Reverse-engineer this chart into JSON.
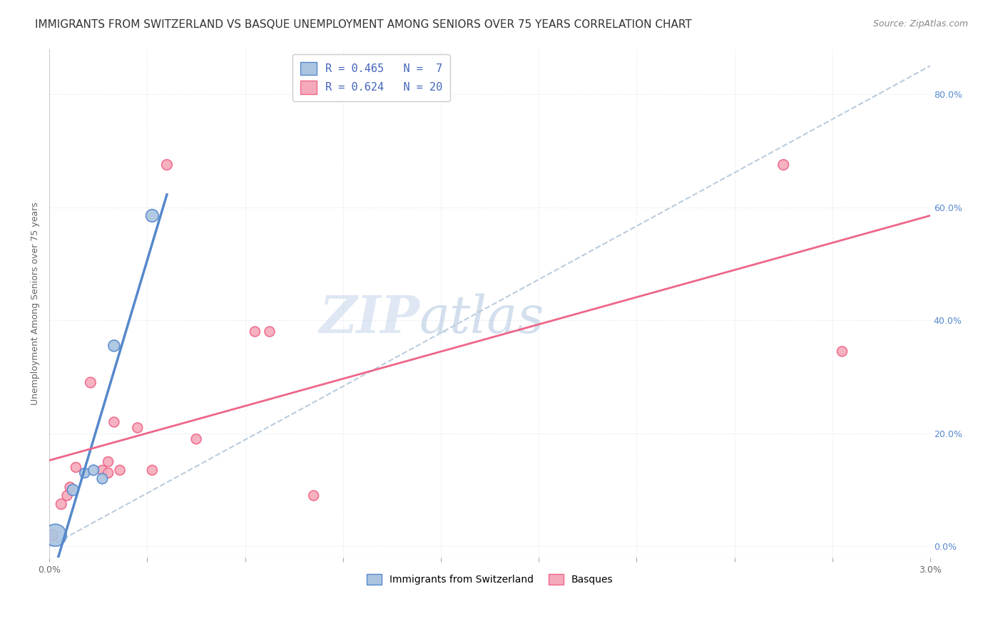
{
  "title": "IMMIGRANTS FROM SWITZERLAND VS BASQUE UNEMPLOYMENT AMONG SENIORS OVER 75 YEARS CORRELATION CHART",
  "source": "Source: ZipAtlas.com",
  "ylabel": "Unemployment Among Seniors over 75 years",
  "right_yticks": [
    "0.0%",
    "20.0%",
    "40.0%",
    "60.0%",
    "80.0%"
  ],
  "right_ytick_vals": [
    0.0,
    0.2,
    0.4,
    0.6,
    0.8
  ],
  "xlim": [
    0.0,
    0.03
  ],
  "ylim": [
    -0.02,
    0.88
  ],
  "plot_ylim": [
    0.0,
    0.85
  ],
  "legend_blue_r": "R = 0.465",
  "legend_blue_n": "N =  7",
  "legend_pink_r": "R = 0.624",
  "legend_pink_n": "N = 20",
  "legend_label_blue": "Immigrants from Switzerland",
  "legend_label_pink": "Basques",
  "blue_scatter": [
    [
      0.0002,
      0.02
    ],
    [
      0.0008,
      0.1
    ],
    [
      0.0012,
      0.13
    ],
    [
      0.0015,
      0.135
    ],
    [
      0.0018,
      0.12
    ],
    [
      0.0022,
      0.355
    ],
    [
      0.0035,
      0.585
    ]
  ],
  "blue_scatter_sizes": [
    500,
    130,
    100,
    110,
    110,
    130,
    160
  ],
  "pink_scatter": [
    [
      0.0001,
      0.02
    ],
    [
      0.0004,
      0.075
    ],
    [
      0.0006,
      0.09
    ],
    [
      0.0007,
      0.105
    ],
    [
      0.0009,
      0.14
    ],
    [
      0.0014,
      0.29
    ],
    [
      0.0018,
      0.135
    ],
    [
      0.002,
      0.13
    ],
    [
      0.002,
      0.15
    ],
    [
      0.0022,
      0.22
    ],
    [
      0.0024,
      0.135
    ],
    [
      0.003,
      0.21
    ],
    [
      0.0035,
      0.135
    ],
    [
      0.004,
      0.675
    ],
    [
      0.005,
      0.19
    ],
    [
      0.007,
      0.38
    ],
    [
      0.0075,
      0.38
    ],
    [
      0.009,
      0.09
    ],
    [
      0.025,
      0.675
    ],
    [
      0.027,
      0.345
    ]
  ],
  "pink_scatter_sizes": [
    130,
    110,
    100,
    100,
    100,
    110,
    100,
    100,
    100,
    100,
    100,
    100,
    100,
    110,
    100,
    100,
    100,
    100,
    110,
    100
  ],
  "blue_line_color": "#5588CC",
  "pink_line_color": "#EE6688",
  "blue_scatter_color": "#AAC4E0",
  "pink_scatter_color": "#F5AABB",
  "dashed_line_color": "#BBCCDD",
  "background_color": "#FFFFFF",
  "watermark_zip": "ZIP",
  "watermark_atlas": "atlas",
  "grid_color": "#E0E4EE",
  "title_fontsize": 11,
  "source_fontsize": 9,
  "axis_label_fontsize": 9,
  "tick_fontsize": 9,
  "legend_fontsize": 11,
  "blue_line_x_start": 0.0,
  "blue_line_x_end": 0.004,
  "pink_line_x_start": 0.0,
  "pink_line_x_end": 0.03
}
